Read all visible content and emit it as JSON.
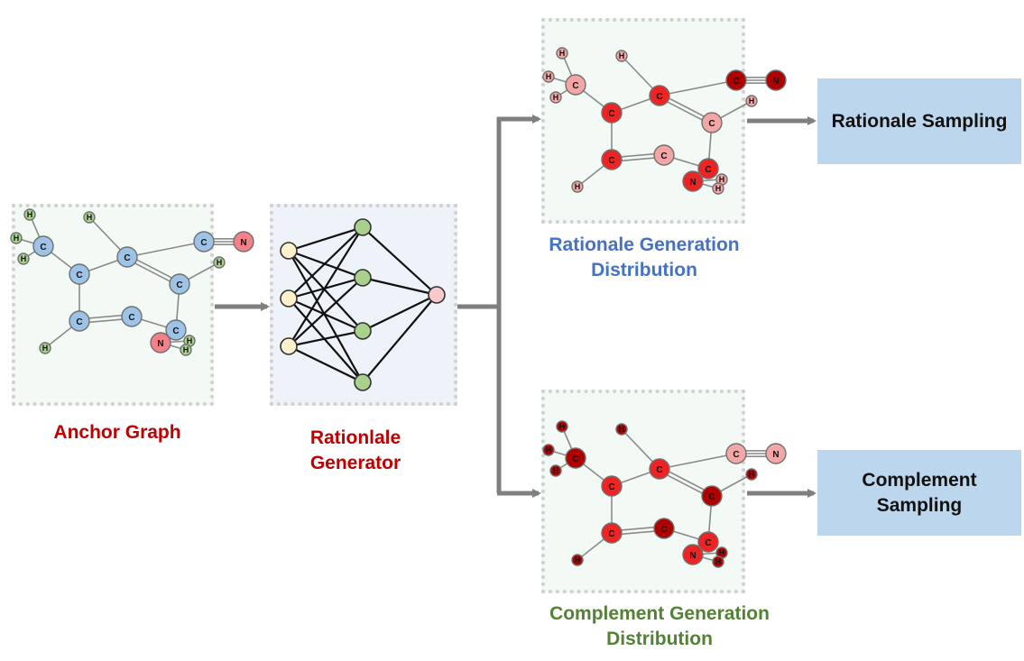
{
  "anchor": {
    "caption": "Anchor Graph",
    "color": "#c00000"
  },
  "generator": {
    "caption_line1": "Rationlale",
    "caption_line2": "Generator",
    "color": "#c00000"
  },
  "rationale_dist": {
    "caption_line1": "Rationale Generation",
    "caption_line2": "Distribution",
    "color": "#4472c4"
  },
  "complement_dist": {
    "caption_line1": "Complement Generation",
    "caption_line2": "Distribution",
    "color": "#538135"
  },
  "rationale_sampling": {
    "label": "Rationale Sampling"
  },
  "complement_sampling": {
    "label_line1": "Complement",
    "label_line2": "Sampling"
  },
  "atom_labels": {
    "carbon": "C",
    "hydrogen": "H",
    "nitrogen": "N"
  },
  "palette": {
    "anchor_carbon": "#9dc3e6",
    "anchor_hydrogen": "#a9d18e",
    "anchor_nitrogen": "#f4808a",
    "light_red": "#f4a6a6",
    "red": "#ee2424",
    "dark_red": "#b00000",
    "input_node": "#fff2cc",
    "hidden_node": "#a9d18e",
    "output_node": "#f8c8cc",
    "arrow": "#7f7f7f",
    "sampling_box": "#bcd7ed"
  }
}
